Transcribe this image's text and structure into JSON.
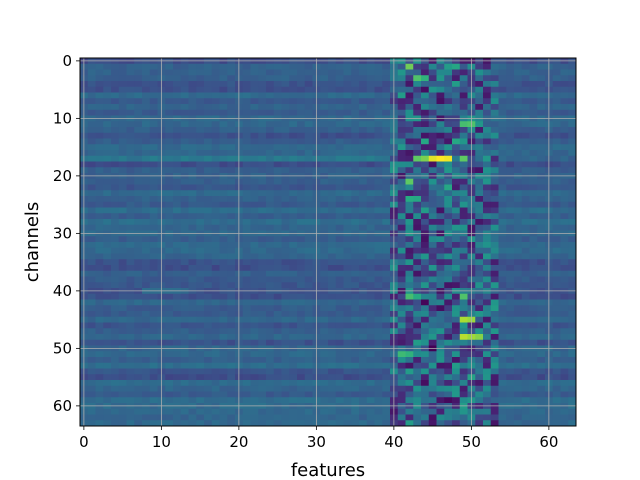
{
  "chart_data": {
    "type": "heatmap",
    "title": "",
    "xlabel": "features",
    "ylabel": "channels",
    "x_range": [
      -0.5,
      63.5
    ],
    "y_range": [
      -0.5,
      63.5
    ],
    "y_inverted": true,
    "x_ticks": [
      0,
      10,
      20,
      30,
      40,
      50,
      60
    ],
    "y_ticks": [
      0,
      10,
      20,
      30,
      40,
      50,
      60
    ],
    "x_tick_labels": [
      "0",
      "10",
      "20",
      "30",
      "40",
      "50",
      "60"
    ],
    "y_tick_labels": [
      "0",
      "10",
      "20",
      "30",
      "40",
      "50",
      "60"
    ],
    "grid": true,
    "colormap": "viridis",
    "value_range": [
      0,
      1
    ],
    "grid_size": [
      64,
      64
    ],
    "background_level": 0.3,
    "hot_spots": [
      {
        "channel": 1,
        "feature": 42,
        "value": 0.78
      },
      {
        "channel": 1,
        "feature": 47,
        "value": 0.55
      },
      {
        "channel": 1,
        "feature": 48,
        "value": 0.6
      },
      {
        "channel": 3,
        "feature": 43,
        "value": 0.72
      },
      {
        "channel": 3,
        "feature": 44,
        "value": 0.65
      },
      {
        "channel": 4,
        "feature": 48,
        "value": 0.55
      },
      {
        "channel": 6,
        "feature": 41,
        "value": 0.55
      },
      {
        "channel": 11,
        "feature": 49,
        "value": 0.7
      },
      {
        "channel": 11,
        "feature": 50,
        "value": 0.72
      },
      {
        "channel": 14,
        "feature": 44,
        "value": 0.6
      },
      {
        "channel": 14,
        "feature": 48,
        "value": 0.6
      },
      {
        "channel": 17,
        "feature": 43,
        "value": 0.75
      },
      {
        "channel": 17,
        "feature": 44,
        "value": 0.8
      },
      {
        "channel": 17,
        "feature": 45,
        "value": 0.96
      },
      {
        "channel": 17,
        "feature": 46,
        "value": 1.0
      },
      {
        "channel": 17,
        "feature": 47,
        "value": 0.98
      },
      {
        "channel": 17,
        "feature": 49,
        "value": 0.75
      },
      {
        "channel": 21,
        "feature": 42,
        "value": 0.75
      },
      {
        "channel": 22,
        "feature": 47,
        "value": 0.6
      },
      {
        "channel": 24,
        "feature": 42,
        "value": 0.62
      },
      {
        "channel": 24,
        "feature": 43,
        "value": 0.6
      },
      {
        "channel": 26,
        "feature": 44,
        "value": 0.55
      },
      {
        "channel": 41,
        "feature": 42,
        "value": 0.7
      },
      {
        "channel": 41,
        "feature": 43,
        "value": 0.62
      },
      {
        "channel": 41,
        "feature": 49,
        "value": 0.72
      },
      {
        "channel": 43,
        "feature": 53,
        "value": 0.55
      },
      {
        "channel": 45,
        "feature": 49,
        "value": 0.88
      },
      {
        "channel": 45,
        "feature": 50,
        "value": 0.85
      },
      {
        "channel": 48,
        "feature": 49,
        "value": 0.9
      },
      {
        "channel": 48,
        "feature": 50,
        "value": 0.86
      },
      {
        "channel": 48,
        "feature": 51,
        "value": 0.82
      },
      {
        "channel": 49,
        "feature": 43,
        "value": 0.55
      },
      {
        "channel": 51,
        "feature": 41,
        "value": 0.68
      },
      {
        "channel": 51,
        "feature": 42,
        "value": 0.65
      },
      {
        "channel": 53,
        "feature": 48,
        "value": 0.55
      },
      {
        "channel": 54,
        "feature": 42,
        "value": 0.55
      },
      {
        "channel": 55,
        "feature": 50,
        "value": 0.58
      },
      {
        "channel": 60,
        "feature": 49,
        "value": 0.55
      },
      {
        "channel": 63,
        "feature": 42,
        "value": 0.55
      }
    ],
    "cold_spots": [
      {
        "channel": 5,
        "feature": 44,
        "value": 0.05
      },
      {
        "channel": 7,
        "feature": 46,
        "value": 0.06
      },
      {
        "channel": 18,
        "feature": 45,
        "value": 0.06
      },
      {
        "channel": 26,
        "feature": 46,
        "value": 0.07
      },
      {
        "channel": 31,
        "feature": 44,
        "value": 0.06
      },
      {
        "channel": 37,
        "feature": 43,
        "value": 0.07
      },
      {
        "channel": 42,
        "feature": 44,
        "value": 0.02
      },
      {
        "channel": 43,
        "feature": 46,
        "value": 0.05
      },
      {
        "channel": 50,
        "feature": 45,
        "value": 0.0
      },
      {
        "channel": 56,
        "feature": 44,
        "value": 0.05
      },
      {
        "channel": 59,
        "feature": 47,
        "value": 0.03
      },
      {
        "channel": 62,
        "feature": 45,
        "value": 0.06
      }
    ]
  }
}
